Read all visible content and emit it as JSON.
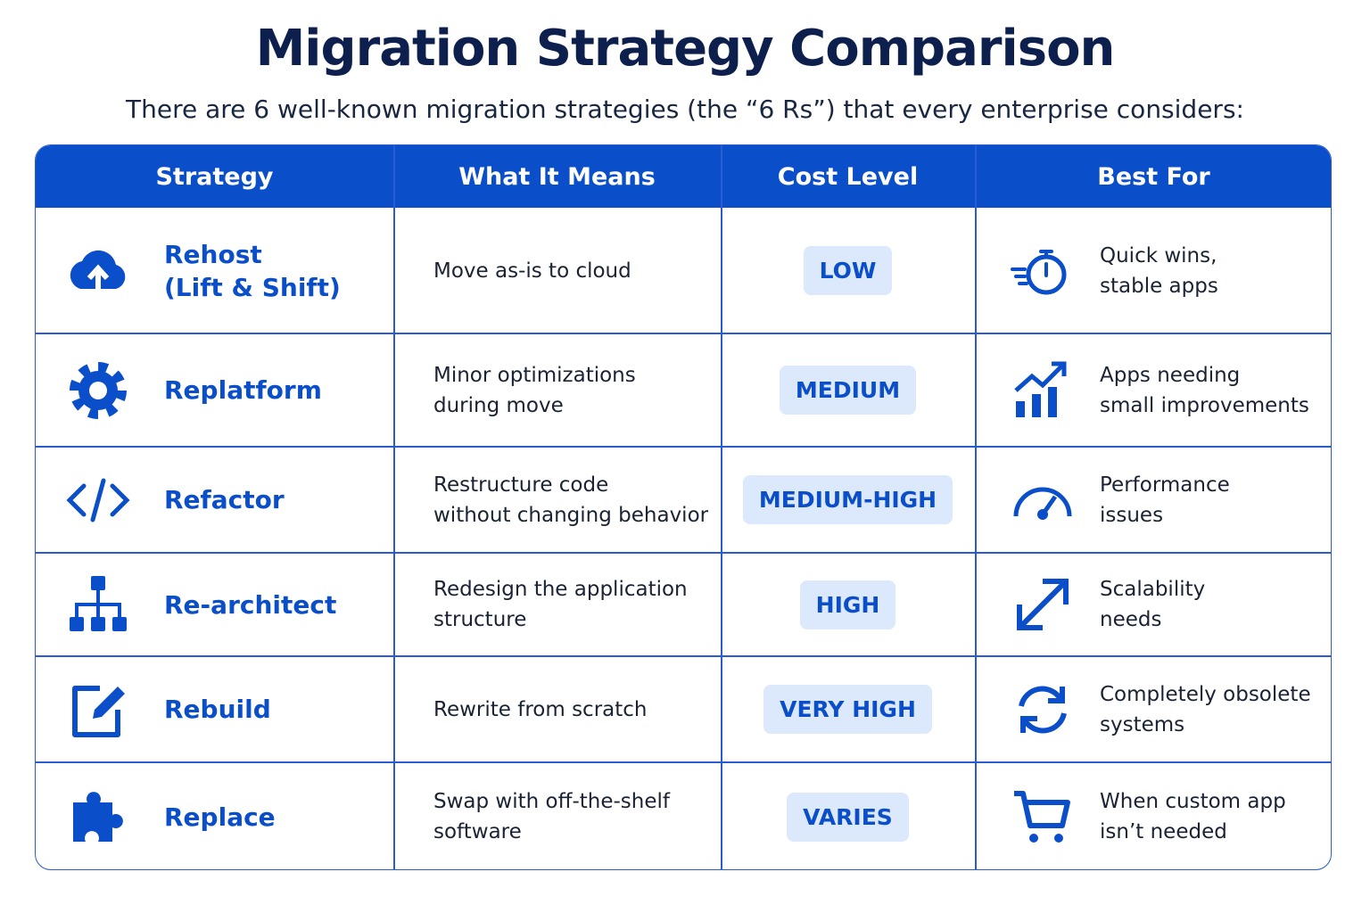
{
  "header": {
    "title": "Migration Strategy Comparison",
    "subtitle": "There are 6 well-known migration strategies (the “6 Rs”) that every enterprise considers:"
  },
  "table": {
    "columns": [
      "Strategy",
      "What It Means",
      "Cost Level",
      "Best For"
    ],
    "rows": [
      {
        "strategy": [
          "Rehost",
          "(Lift & Shift)"
        ],
        "meaning": [
          "Move as-is to cloud"
        ],
        "cost": "LOW",
        "best_for": [
          "Quick wins,",
          "stable apps"
        ]
      },
      {
        "strategy": [
          "Replatform"
        ],
        "meaning": [
          "Minor optimizations",
          "during move"
        ],
        "cost": "MEDIUM",
        "best_for": [
          "Apps needing",
          "small improvements"
        ]
      },
      {
        "strategy": [
          "Refactor"
        ],
        "meaning": [
          "Restructure code",
          "without changing behavior"
        ],
        "cost": "MEDIUM-HIGH",
        "best_for": [
          "Performance",
          "issues"
        ]
      },
      {
        "strategy": [
          "Re-architect"
        ],
        "meaning": [
          "Redesign the application",
          "structure"
        ],
        "cost": "HIGH",
        "best_for": [
          "Scalability",
          "needs"
        ]
      },
      {
        "strategy": [
          "Rebuild"
        ],
        "meaning": [
          "Rewrite from scratch"
        ],
        "cost": "VERY HIGH",
        "best_for": [
          "Completely obsolete",
          "systems"
        ]
      },
      {
        "strategy": [
          "Replace"
        ],
        "meaning": [
          "Swap with off-the-shelf",
          "software"
        ],
        "cost": "VARIES",
        "best_for": [
          "When custom app",
          "isn’t needed"
        ]
      }
    ]
  }
}
